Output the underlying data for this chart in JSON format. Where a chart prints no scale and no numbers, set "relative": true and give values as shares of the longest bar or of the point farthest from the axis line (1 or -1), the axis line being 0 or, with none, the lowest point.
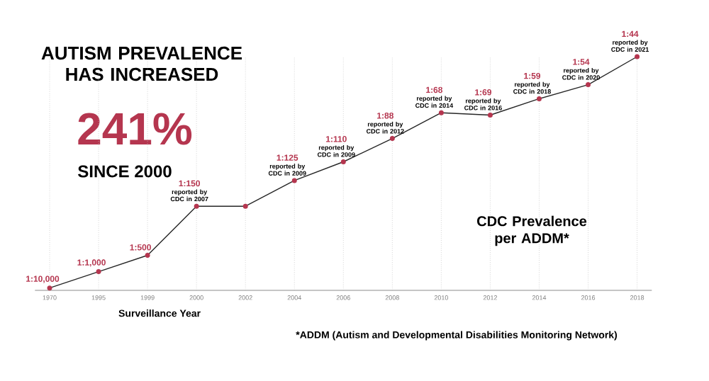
{
  "chart_data": {
    "type": "line",
    "title": "AUTISM PREVALENCE HAS INCREASED",
    "xlabel": "Surveillance Year",
    "relative": true,
    "marker": "circle",
    "grid": "x",
    "categories": [
      "1970",
      "1995",
      "1999",
      "2000",
      "2002",
      "2004",
      "2006",
      "2008",
      "2010",
      "2012",
      "2014",
      "2016",
      "2018"
    ],
    "series": [
      {
        "color": "#b5364f",
        "values": [
          0.01,
          0.08,
          0.15,
          0.36,
          0.36,
          0.47,
          0.55,
          0.65,
          0.76,
          0.75,
          0.82,
          0.88,
          1
        ]
      }
    ],
    "annotations": [
      "241%",
      "SINCE 2000",
      "CDC Prevalence per ADDM*",
      "*ADDM (Autism and Developmental Disabilities Monitoring Network)",
      {
        "text": "1:10,000",
        "x": "1970",
        "y": 0.01
      },
      {
        "text": "1:1,000",
        "x": "1995",
        "y": 0.08
      },
      {
        "text": "1:500",
        "x": "1999",
        "y": 0.15
      },
      {
        "text": "1:150",
        "x": "2000",
        "y": 0.36
      },
      {
        "text": "reported by CDC in 2007",
        "x": "2000",
        "y": 0.36
      },
      {
        "text": "1:125",
        "x": "2004",
        "y": 0.47
      },
      {
        "text": "reported by CDC in 2009",
        "x": "2004",
        "y": 0.47
      },
      {
        "text": "1:110",
        "x": "2006",
        "y": 0.55
      },
      {
        "text": "reported by CDC in 2009",
        "x": "2006",
        "y": 0.55
      },
      {
        "text": "1:88",
        "x": "2008",
        "y": 0.65
      },
      {
        "text": "reported by CDC in 2012",
        "x": "2008",
        "y": 0.65
      },
      {
        "text": "1:68",
        "x": "2010",
        "y": 0.76
      },
      {
        "text": "reported by CDC in 2014",
        "x": "2010",
        "y": 0.76
      },
      {
        "text": "1:69",
        "x": "2012",
        "y": 0.75
      },
      {
        "text": "reported by CDC in 2016",
        "x": "2012",
        "y": 0.75
      },
      {
        "text": "1:59",
        "x": "2014",
        "y": 0.82
      },
      {
        "text": "reported by CDC in 2018",
        "x": "2014",
        "y": 0.82
      },
      {
        "text": "1:54",
        "x": "2016",
        "y": 0.88
      },
      {
        "text": "reported by CDC in 2020",
        "x": "2016",
        "y": 0.88
      },
      {
        "text": "1:44",
        "x": "2018",
        "y": 1
      },
      {
        "text": "reported by CDC in 2021",
        "x": "2018",
        "y": 1
      }
    ]
  }
}
